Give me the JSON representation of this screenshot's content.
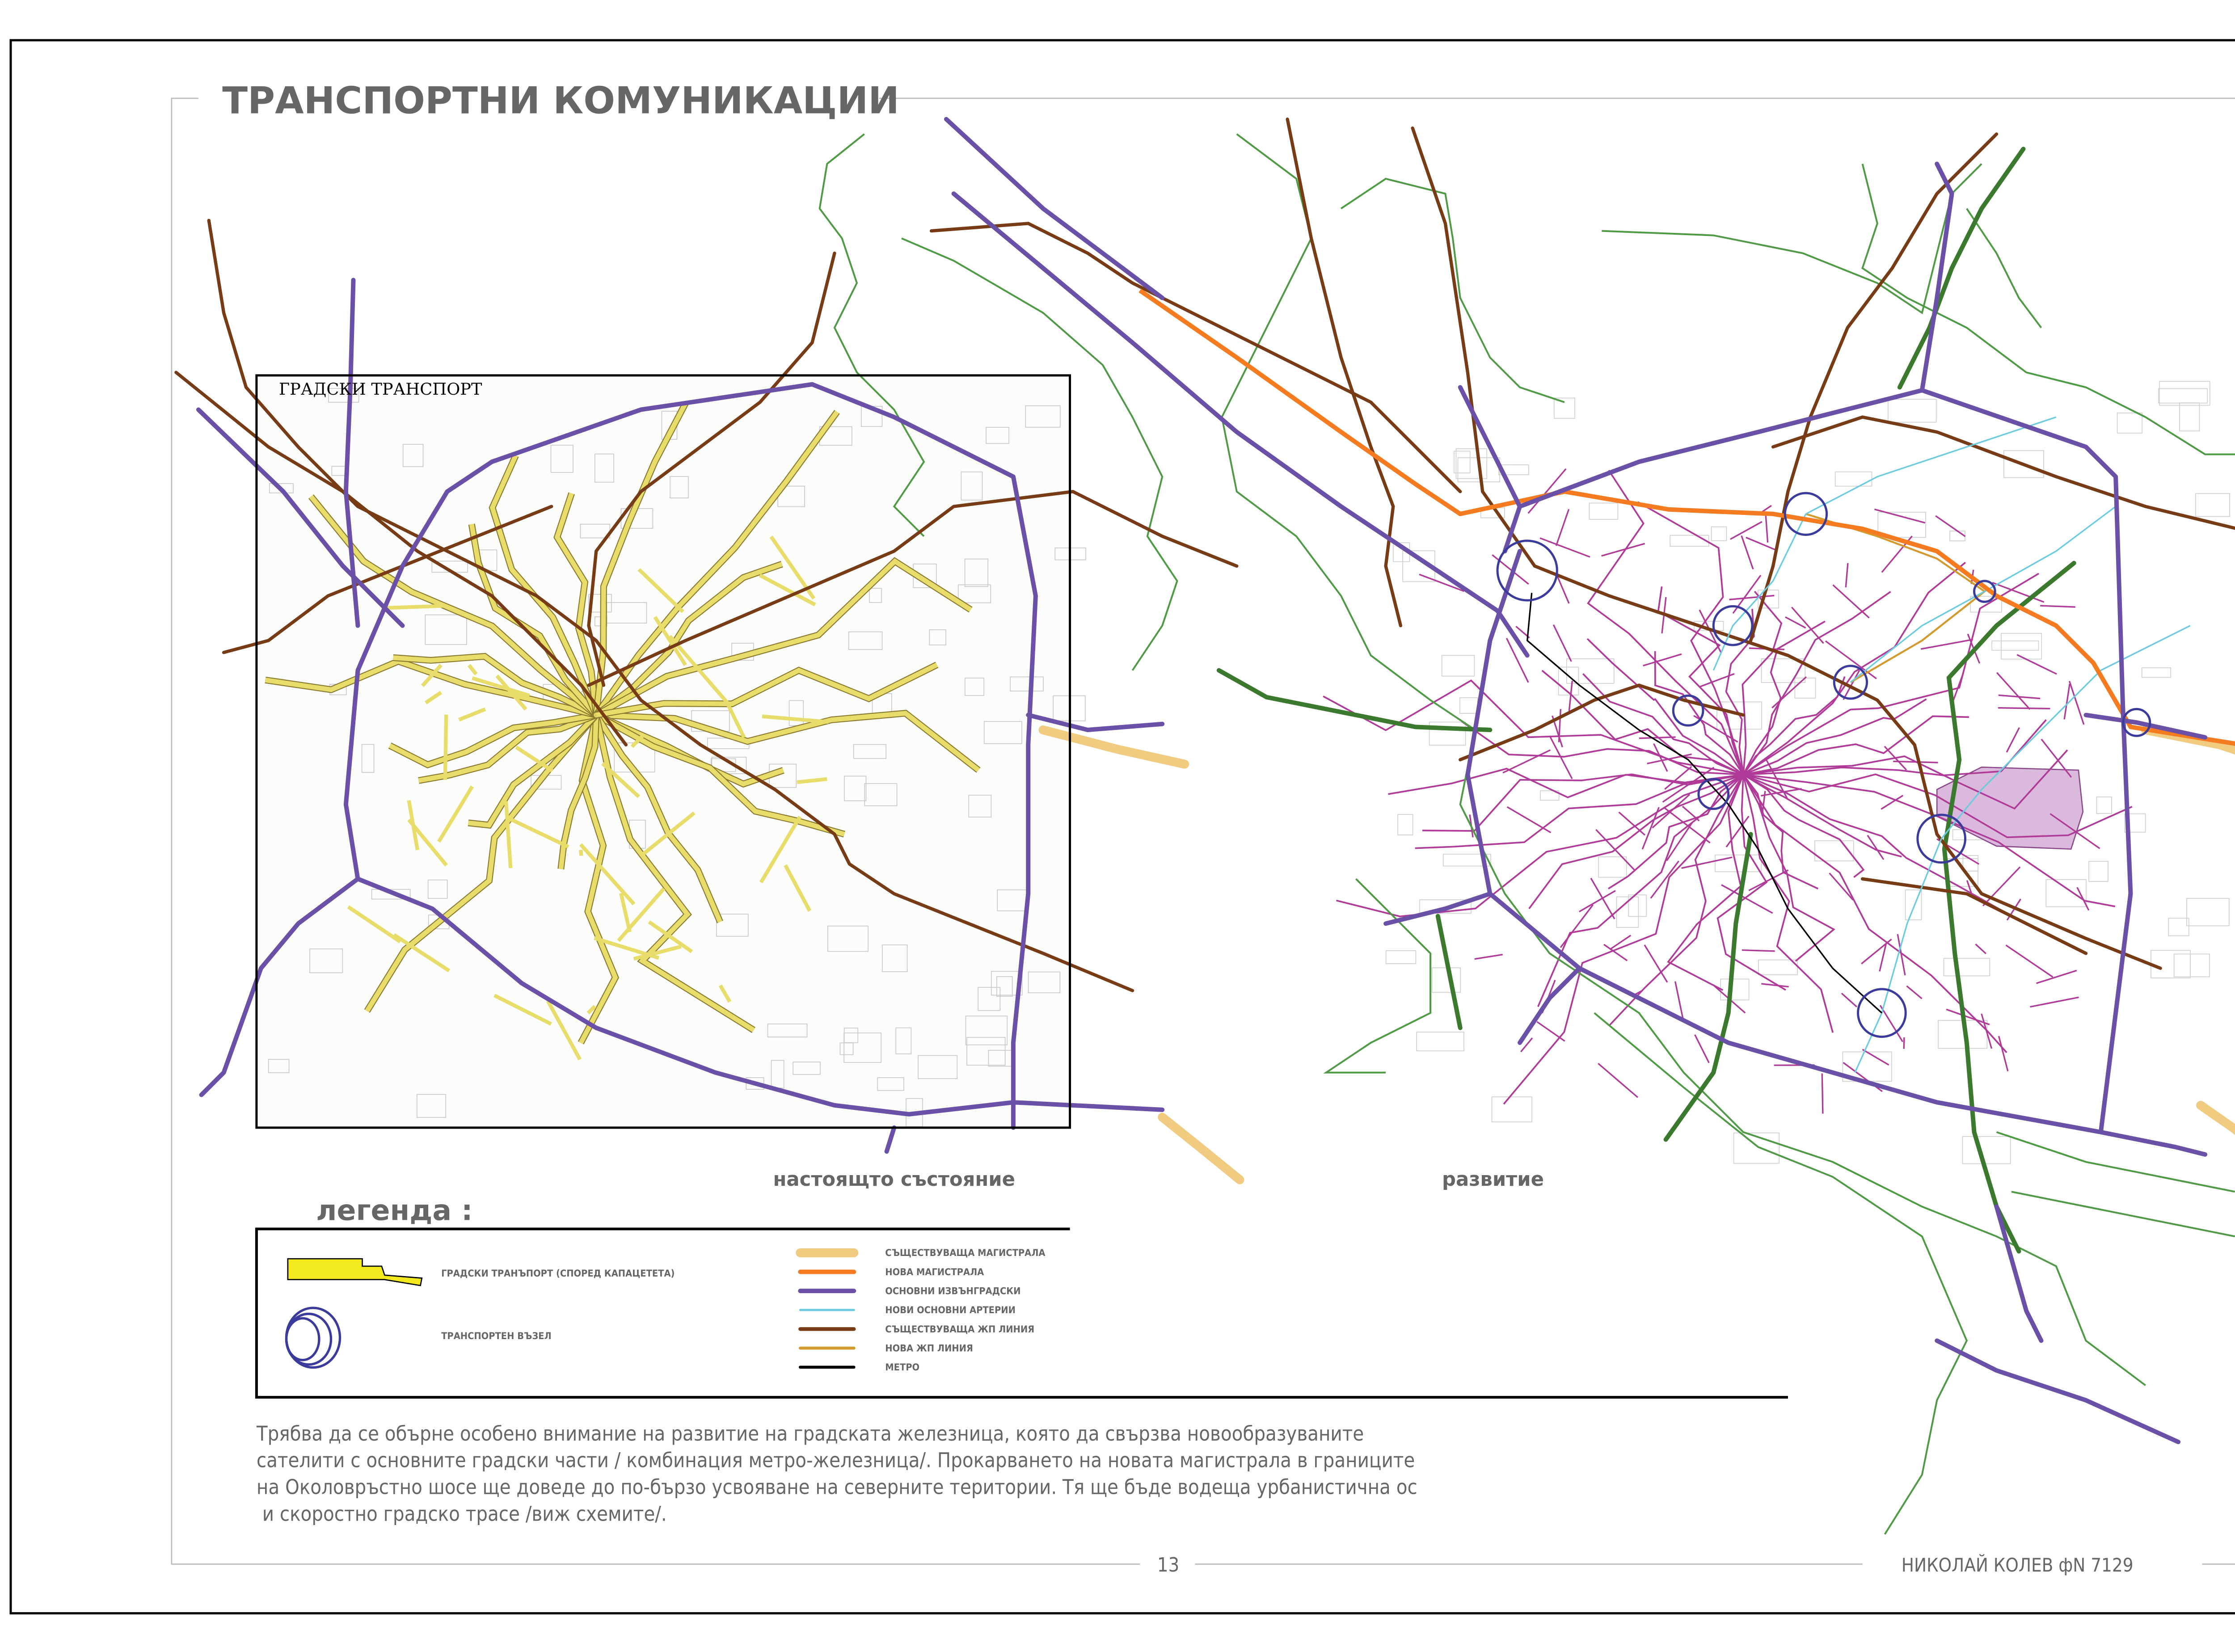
{
  "title": "ТРАНСПОРТНИ КОМУНИКАЦИИ",
  "left_map": {
    "title": "ГРАДСКИ ТРАНСПОРТ",
    "caption": "настоящто състояние"
  },
  "right_map": {
    "caption": "развитие"
  },
  "legend": {
    "heading": "легенда :",
    "symbols": [
      {
        "label": "ГРАДСКИ ТРАНЪПОРТ (СПОРЕД КАПАЦЕТЕТА)",
        "icon": "yellow-road-capacity-symbol",
        "color": "#f2ea1e"
      },
      {
        "label": "ТРАНСПОРТЕН ВЪЗЕЛ",
        "icon": "transport-node-circle",
        "color": "#3b3b9c"
      }
    ],
    "lines": [
      {
        "label": "СЪЩЕСТВУВАЩА МАГИСТРАЛА",
        "color": "#f0cb80"
      },
      {
        "label": "НОВА МАГИСТРАЛА",
        "color": "#f47b20"
      },
      {
        "label": "ОСНОВНИ ИЗВЪНГРАДСКИ",
        "color": "#6a50a7"
      },
      {
        "label": "НОВИ ОСНОВНИ АРТЕРИИ",
        "color": "#6ccbdf"
      },
      {
        "label": "СЪЩЕСТВУВАЩА ЖП ЛИНИЯ",
        "color": "#773b15"
      },
      {
        "label": "НОВА ЖП ЛИНИЯ",
        "color": "#d39b2e"
      },
      {
        "label": "МЕТРО",
        "color": "#000000"
      }
    ]
  },
  "colors": {
    "boundary": "#4f9a45",
    "green_corridor": "#3b7a2e",
    "street_network": "#b03a98",
    "urban_transport": "#e8dc6a",
    "development_zone": "#dbb9dc"
  },
  "paragraph": [
    "Трябва да се обърне особено внимание на развитие на градската железница, която да свързва новообразуваните",
    "сателити с основните градски части / комбинация метро-железница/. Прокарването на новата магистрала в границите",
    "на Околовръстно шосе ще доведе до по-бързо усвояване на северните територии. Тя ще бъде водеща урбанистична ос",
    " и скоростно градско трасе /виж схемите/."
  ],
  "footer": {
    "page_number": "13",
    "author": "НИКОЛАЙ КОЛЕВ фN 7129"
  }
}
